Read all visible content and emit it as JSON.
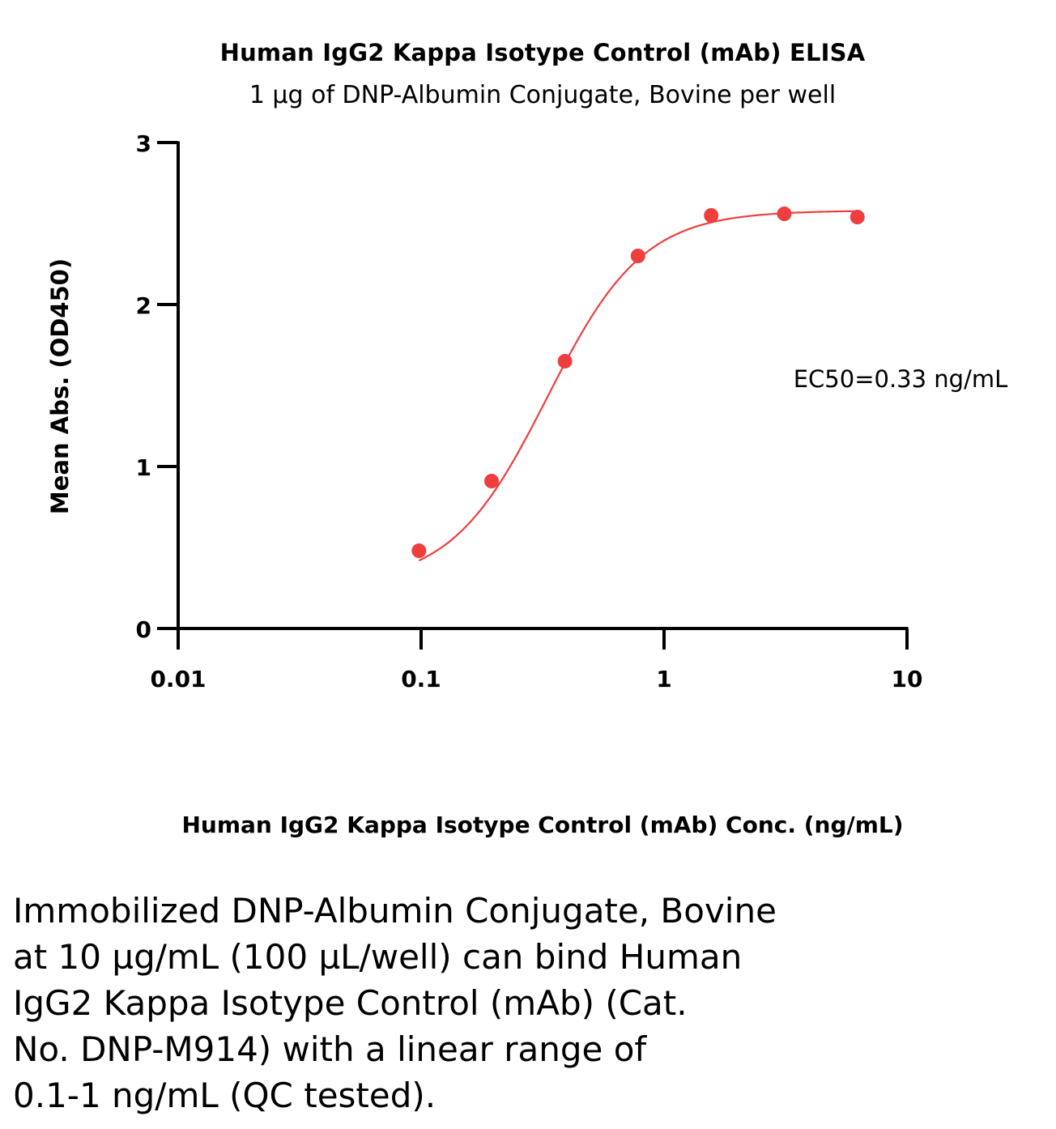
{
  "colors": {
    "series": "#ef3e3e",
    "axis": "#000000",
    "text": "#000000"
  },
  "chart_data": {
    "type": "scatter",
    "title": "Human IgG2 Kappa Isotype Control (mAb) ELISA",
    "subtitle": "1 µg of DNP-Albumin Conjugate, Bovine per well",
    "xlabel": "Human IgG2 Kappa Isotype Control (mAb) Conc. (ng/mL)",
    "ylabel": "Mean Abs. (OD450)",
    "xscale": "log",
    "xlim": [
      0.01,
      10
    ],
    "ylim": [
      0,
      3
    ],
    "xticks": [
      "0.01",
      "0.1",
      "1",
      "10"
    ],
    "yticks": [
      "0",
      "1",
      "2",
      "3"
    ],
    "grid": false,
    "annotation": "EC50=0.33 ng/mL",
    "series": [
      {
        "points": [
          {
            "x": 0.098,
            "y": 0.48
          },
          {
            "x": 0.195,
            "y": 0.91
          },
          {
            "x": 0.391,
            "y": 1.65
          },
          {
            "x": 0.781,
            "y": 2.3
          },
          {
            "x": 1.563,
            "y": 2.55
          },
          {
            "x": 3.125,
            "y": 2.56
          },
          {
            "x": 6.25,
            "y": 2.54
          }
        ],
        "fit": {
          "model": "4PL",
          "bottom": 0.27,
          "top": 2.58,
          "ec50": 0.33,
          "hill": 2.2,
          "x_range": [
            0.098,
            6.25
          ]
        }
      }
    ]
  },
  "caption": {
    "lines": [
      "Immobilized DNP-Albumin Conjugate, Bovine",
      "at 10 µg/mL (100 µL/well) can bind Human",
      "IgG2 Kappa Isotype Control (mAb) (Cat.",
      "No. DNP-M914) with a linear range of",
      "0.1-1 ng/mL (QC tested)."
    ]
  }
}
